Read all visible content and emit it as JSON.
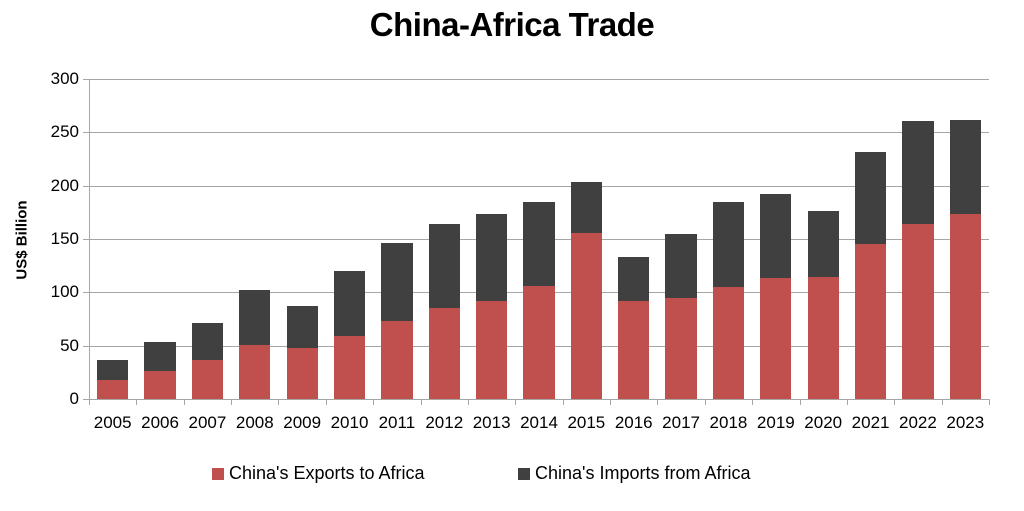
{
  "title": "China-Africa Trade",
  "colors": {
    "exports": "#c0504d",
    "imports": "#404040",
    "grid": "#a6a6a6"
  },
  "chart_data": {
    "type": "bar",
    "stacked": true,
    "title": "China-Africa Trade",
    "xlabel": "",
    "ylabel": "US$ Billion",
    "ylim": [
      0,
      300
    ],
    "yticks": [
      0,
      50,
      100,
      150,
      200,
      250,
      300
    ],
    "grid": true,
    "legend_position": "bottom",
    "categories": [
      "2005",
      "2006",
      "2007",
      "2008",
      "2009",
      "2010",
      "2011",
      "2012",
      "2013",
      "2014",
      "2015",
      "2016",
      "2017",
      "2018",
      "2019",
      "2020",
      "2021",
      "2022",
      "2023"
    ],
    "series": [
      {
        "name": "China's Exports to Africa",
        "color": "#c0504d",
        "values": [
          18,
          26,
          37,
          51,
          48,
          59,
          73,
          85,
          92,
          106,
          156,
          92,
          95,
          105,
          113,
          114,
          145,
          164,
          173
        ]
      },
      {
        "name": "China's Imports from Africa",
        "color": "#404040",
        "values": [
          19,
          27,
          34,
          51,
          39,
          61,
          73,
          79,
          81,
          79,
          47,
          41,
          60,
          80,
          79,
          62,
          87,
          97,
          89
        ]
      }
    ],
    "totals": [
      37,
      53,
      71,
      102,
      87,
      120,
      146,
      164,
      173,
      185,
      203,
      133,
      155,
      185,
      192,
      176,
      232,
      261,
      262
    ]
  },
  "legend": {
    "exports_label": "China's Exports to Africa",
    "imports_label": "China's Imports from Africa"
  }
}
